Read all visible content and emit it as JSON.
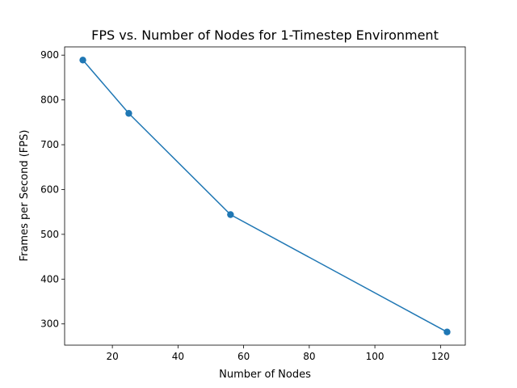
{
  "chart_data": {
    "type": "line",
    "title": "FPS vs. Number of Nodes for 1-Timestep Environment",
    "xlabel": "Number of Nodes",
    "ylabel": "Frames per Second (FPS)",
    "xlim": [
      5.45,
      127.55
    ],
    "ylim": [
      252.6,
      918.4
    ],
    "xticks": [
      20,
      40,
      60,
      80,
      100,
      120
    ],
    "yticks": [
      300,
      400,
      500,
      600,
      700,
      800,
      900
    ],
    "grid": false,
    "series": [
      {
        "x": [
          11,
          25,
          56,
          122
        ],
        "y": [
          889,
          770,
          544,
          282
        ]
      }
    ],
    "colors": {
      "line": "#1f77b4",
      "marker": "#1f77b4"
    },
    "marker": "circle"
  }
}
